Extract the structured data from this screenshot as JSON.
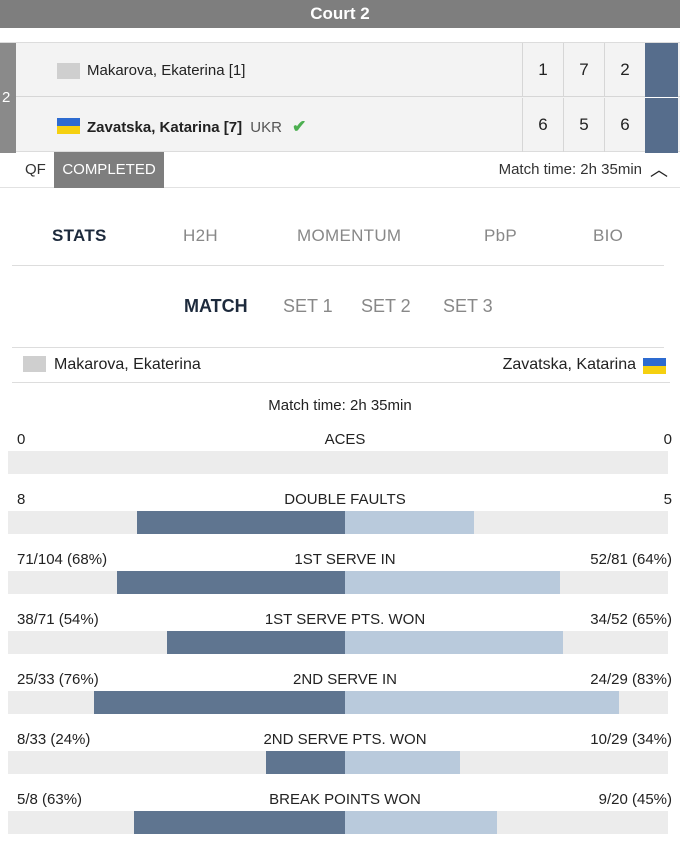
{
  "court": {
    "title": "Court 2",
    "tab_label": "2"
  },
  "players": [
    {
      "name": "Makarova, Ekaterina",
      "seed": "[1]",
      "country": "",
      "winner": false,
      "flag_color": "#cfcfcf",
      "scores": [
        "1",
        "7",
        "2"
      ]
    },
    {
      "name": "Zavatska, Katarina",
      "seed": "[7]",
      "country": "UKR",
      "winner": true,
      "flag_colors": [
        "#2d6bd0",
        "#f5d010"
      ],
      "winner_icon": "check-icon",
      "scores": [
        "6",
        "5",
        "6"
      ]
    }
  ],
  "status": {
    "round": "QF",
    "state": "COMPLETED",
    "match_time": "Match time: 2h 35min",
    "collapse_icon": "chevron-up-icon"
  },
  "tabs": [
    "STATS",
    "H2H",
    "MOMENTUM",
    "PbP",
    "BIO"
  ],
  "active_tab": "STATS",
  "subtabs": [
    "MATCH",
    "SET 1",
    "SET 2",
    "SET 3"
  ],
  "active_subtab": "MATCH",
  "stats_header": {
    "left_player": "Makarova, Ekaterina",
    "right_player": "Zavatska, Katarina",
    "match_time": "Match time: 2h 35min"
  },
  "stats": [
    {
      "label": "ACES",
      "left": "0",
      "right": "0",
      "left_share": 0,
      "right_share": 0
    },
    {
      "label": "DOUBLE FAULTS",
      "left": "8",
      "right": "5",
      "left_share": 0.63,
      "right_share": 0.39
    },
    {
      "label": "1ST SERVE IN",
      "left": "71/104 (68%)",
      "right": "52/81 (64%)",
      "left_share": 0.69,
      "right_share": 0.65
    },
    {
      "label": "1ST SERVE PTS. WON",
      "left": "38/71 (54%)",
      "right": "34/52 (65%)",
      "left_share": 0.54,
      "right_share": 0.66
    },
    {
      "label": "2ND SERVE IN",
      "left": "25/33 (76%)",
      "right": "24/29 (83%)",
      "left_share": 0.76,
      "right_share": 0.83
    },
    {
      "label": "2ND SERVE PTS. WON",
      "left": "8/33 (24%)",
      "right": "10/29 (34%)",
      "left_share": 0.24,
      "right_share": 0.35
    },
    {
      "label": "BREAK POINTS WON",
      "left": "5/8 (63%)",
      "right": "9/20 (45%)",
      "left_share": 0.64,
      "right_share": 0.46
    }
  ],
  "colors": {
    "header_bg": "#7e7e7e",
    "left_bar": "#5f7590",
    "right_bar": "#b9cadc",
    "track": "#ececec",
    "accent_tab": "#566d8c",
    "check": "#4caf50"
  }
}
